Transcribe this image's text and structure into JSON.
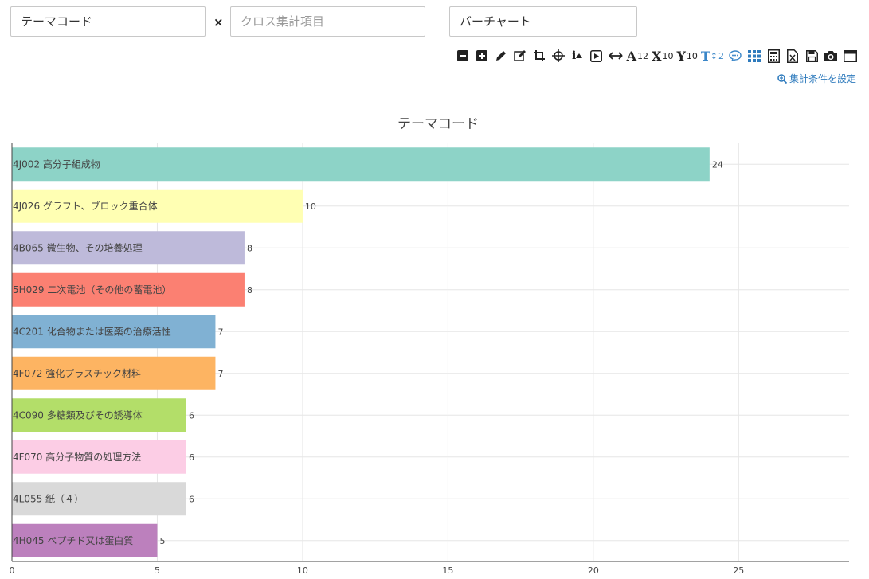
{
  "controls": {
    "field1_value": "テーマコード",
    "field2_placeholder": "クロス集計項目",
    "field3_value": "バーチャート",
    "separator": "×"
  },
  "toolbar": {
    "font_size_label": "12",
    "x_label": "10",
    "y_label": "10",
    "t_label": "2"
  },
  "settings_link": "集計条件を設定",
  "colors": {
    "accent": "#2f7bbd",
    "grid": "#e6e6e6",
    "axis": "#444444"
  },
  "chart_data": {
    "type": "bar",
    "orientation": "horizontal",
    "title": "テーマコード",
    "categories": [
      "4J002 高分子組成物",
      "4J026 グラフト、ブロック重合体",
      "4B065 微生物、その培養処理",
      "5H029 二次電池（その他の蓄電池）",
      "4C201 化合物または医薬の治療活性",
      "4F072 強化プラスチック材料",
      "4C090 多糖類及びその誘導体",
      "4F070 高分子物質の処理方法",
      "4L055 紙（４）",
      "4H045 ペプチド又は蛋白質"
    ],
    "values": [
      24,
      10,
      8,
      8,
      7,
      7,
      6,
      6,
      6,
      5
    ],
    "colors": [
      "#8dd3c7",
      "#ffffb3",
      "#bebada",
      "#fb8072",
      "#80b1d3",
      "#fdb462",
      "#b3de69",
      "#fccde5",
      "#d9d9d9",
      "#bc80bd"
    ],
    "xlim": [
      0,
      28.8
    ],
    "xticks": [
      0,
      5,
      10,
      15,
      20,
      25
    ],
    "grid": true
  }
}
